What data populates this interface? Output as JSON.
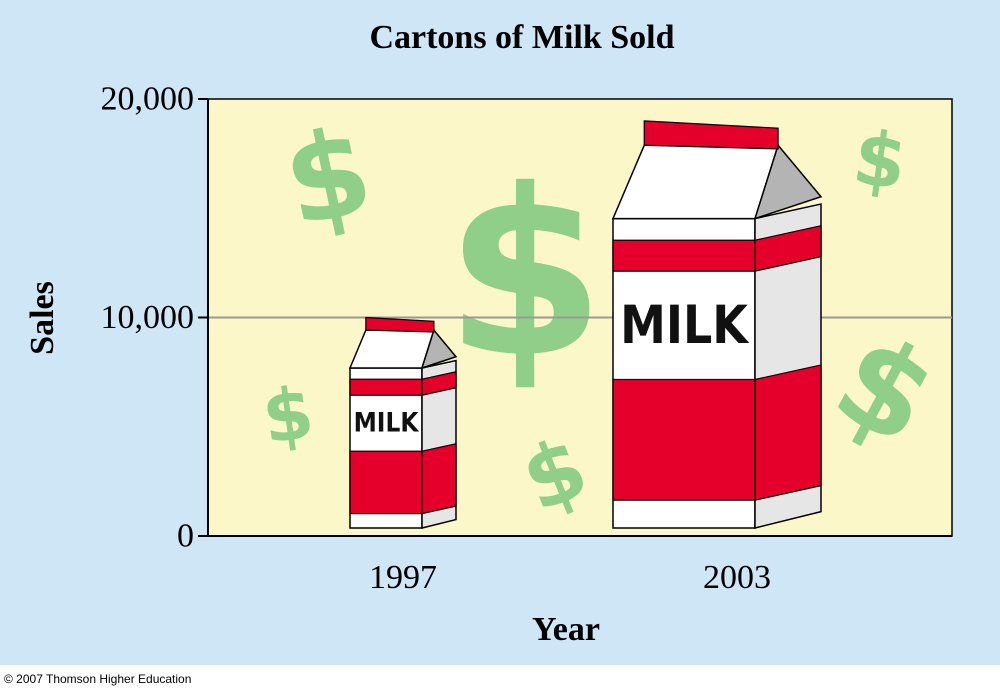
{
  "chart_data": {
    "type": "bar",
    "title": "Cartons of Milk Sold",
    "xlabel": "Year",
    "ylabel": "Sales",
    "categories": [
      "1997",
      "2003"
    ],
    "values": [
      10000,
      19000
    ],
    "ylim": [
      0,
      20000
    ],
    "yticks": [
      {
        "value": 0,
        "label": "0"
      },
      {
        "value": 10000,
        "label": "10,000"
      },
      {
        "value": 20000,
        "label": "20,000"
      }
    ],
    "gridline_values": [
      10000
    ],
    "bar_label": "MILK",
    "decorative_symbol": "$",
    "colors": {
      "outer_background": "#cfe6f7",
      "plot_background": "#fbf7c8",
      "carton_red": "#e4002b",
      "carton_white": "#ffffff",
      "carton_side": "#e6e6e6",
      "carton_gable_shadow": "#b4b4b4",
      "dollar_green": "#8fcf8a",
      "gridline": "#999999",
      "axis": "#000000"
    }
  },
  "footer": {
    "copyright": "© 2007 Thomson Higher Education"
  }
}
